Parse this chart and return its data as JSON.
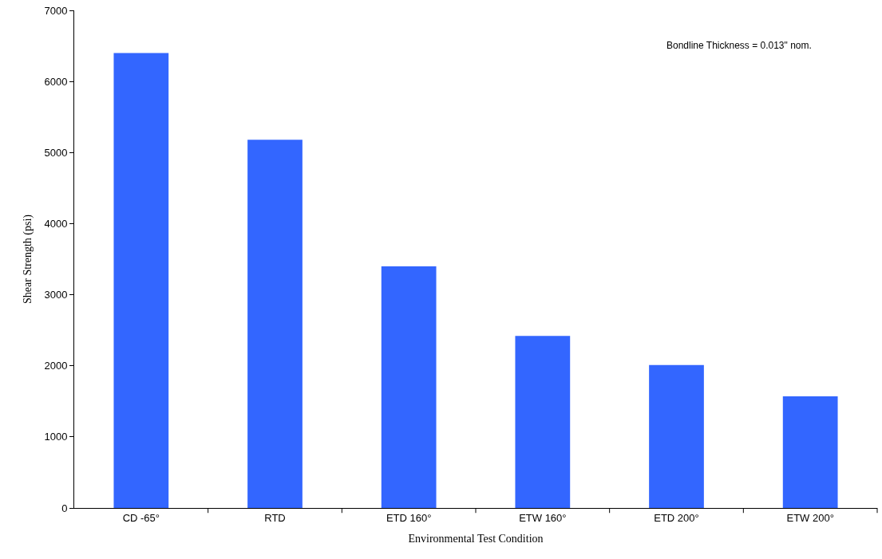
{
  "chart_data": {
    "type": "bar",
    "categories": [
      "CD -65°",
      "RTD",
      "ETD 160°",
      "ETW 160°",
      "ETD 200°",
      "ETW 200°"
    ],
    "values": [
      6400,
      5180,
      3400,
      2420,
      2010,
      1570
    ],
    "color": "#3366ff",
    "xlabel": "Environmental Test Condition",
    "ylabel": "Shear Strength (psi)",
    "ylim": [
      0,
      7000
    ],
    "yticks": [
      0,
      1000,
      2000,
      3000,
      4000,
      5000,
      6000,
      7000
    ],
    "grid": false,
    "annotations": [
      "Bondline Thickness = 0.013\" nom."
    ]
  }
}
